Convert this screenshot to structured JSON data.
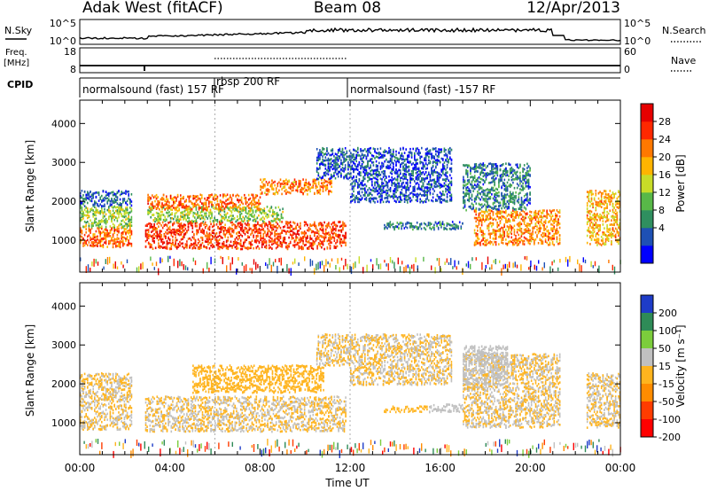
{
  "header": {
    "title": "Adak West (fitACF)",
    "beam": "Beam 08",
    "date": "12/Apr/2013"
  },
  "nsky_panel": {
    "left_label": "N.Sky",
    "right_label": "N.Search",
    "ticks": [
      "10^5",
      "10^0"
    ]
  },
  "freq_panel": {
    "left_label": "Freq.",
    "left_unit": "[MHz]",
    "left_ticks": [
      "18",
      "8"
    ],
    "right_label": "Nave",
    "right_ticks": [
      "60",
      "0"
    ]
  },
  "cpid_panel": {
    "label": "CPID",
    "segments": [
      {
        "name": "normalsound (fast) 157 RF",
        "start": 0.0,
        "end": 6.0
      },
      {
        "name": "rbsp 200 RF",
        "start": 6.0,
        "end": 12.0
      },
      {
        "name": "normalsound (fast) -157 RF",
        "start": 12.0,
        "end": 24.0
      }
    ]
  },
  "power_colorbar": {
    "label": "Power [dB]",
    "ticks": [
      "28",
      "24",
      "20",
      "16",
      "12",
      "8",
      "4"
    ],
    "colors": [
      "#0000ff",
      "#1e50b4",
      "#2f8f5f",
      "#58b848",
      "#c8dc28",
      "#ffb400",
      "#ff7800",
      "#ff2800",
      "#e60000"
    ]
  },
  "velocity_colorbar": {
    "label": "Velocity [m s⁻¹]",
    "ticks": [
      "200",
      "100",
      "50",
      "15",
      "-15",
      "-50",
      "-100",
      "-200"
    ],
    "colors": [
      "#1e3cc8",
      "#2e8b57",
      "#7ccd3c",
      "#c0c0c0",
      "#ffb41e",
      "#ff8c00",
      "#ff3c00",
      "#ff0000"
    ]
  },
  "time_axis": {
    "xlabel": "Time UT",
    "ticks": [
      "00:00",
      "04:00",
      "08:00",
      "12:00",
      "16:00",
      "20:00",
      "00:00"
    ]
  },
  "chart_data": [
    {
      "type": "heatmap",
      "title": "Power",
      "xlabel": "Time UT",
      "ylabel": "Slant Range [km]",
      "xlim": [
        0,
        24
      ],
      "ylim": [
        180,
        4600
      ],
      "yticks": [
        "1000",
        "2000",
        "3000",
        "4000"
      ],
      "colorbar": "Power [dB]",
      "bands": [
        {
          "x": [
            0.0,
            2.3
          ],
          "y": [
            850,
            1350
          ],
          "v": 24
        },
        {
          "x": [
            0.0,
            2.3
          ],
          "y": [
            1350,
            1900
          ],
          "v": 14
        },
        {
          "x": [
            0.0,
            2.3
          ],
          "y": [
            1900,
            2300
          ],
          "v": 6
        },
        {
          "x": [
            2.9,
            11.8
          ],
          "y": [
            800,
            1500
          ],
          "v": 26
        },
        {
          "x": [
            3.0,
            9.0
          ],
          "y": [
            1500,
            1900
          ],
          "v": 14
        },
        {
          "x": [
            3.0,
            8.0
          ],
          "y": [
            1800,
            2200
          ],
          "v": 24
        },
        {
          "x": [
            8.0,
            11.2
          ],
          "y": [
            2200,
            2600
          ],
          "v": 22
        },
        {
          "x": [
            10.5,
            12.0
          ],
          "y": [
            2600,
            3400
          ],
          "v": 6
        },
        {
          "x": [
            12.0,
            16.5
          ],
          "y": [
            2000,
            3400
          ],
          "v": 5
        },
        {
          "x": [
            13.5,
            17.0
          ],
          "y": [
            1300,
            1500
          ],
          "v": 8
        },
        {
          "x": [
            17.5,
            21.3
          ],
          "y": [
            900,
            1800
          ],
          "v": 22
        },
        {
          "x": [
            17.0,
            20.0
          ],
          "y": [
            1800,
            3000
          ],
          "v": 8
        },
        {
          "x": [
            22.5,
            24.0
          ],
          "y": [
            900,
            2300
          ],
          "v": 20
        }
      ]
    },
    {
      "type": "heatmap",
      "title": "Velocity",
      "xlabel": "Time UT",
      "ylabel": "Slant Range [km]",
      "xlim": [
        0,
        24
      ],
      "ylim": [
        180,
        4600
      ],
      "yticks": [
        "1000",
        "2000",
        "3000",
        "4000"
      ],
      "colorbar": "Velocity [m s⁻¹]",
      "bands": [
        {
          "x": [
            0.0,
            2.3
          ],
          "y": [
            850,
            2300
          ],
          "v": 0
        },
        {
          "x": [
            2.9,
            11.8
          ],
          "y": [
            800,
            1700
          ],
          "v": 0
        },
        {
          "x": [
            5.0,
            10.8
          ],
          "y": [
            1800,
            2500
          ],
          "v": -40
        },
        {
          "x": [
            10.5,
            12.0
          ],
          "y": [
            2500,
            3300
          ],
          "v": 0
        },
        {
          "x": [
            12.0,
            16.5
          ],
          "y": [
            2000,
            3300
          ],
          "v": 0
        },
        {
          "x": [
            13.5,
            15.5
          ],
          "y": [
            1300,
            1450
          ],
          "v": -40
        },
        {
          "x": [
            15.5,
            17.0
          ],
          "y": [
            1300,
            1500
          ],
          "v": 40
        },
        {
          "x": [
            17.0,
            21.3
          ],
          "y": [
            900,
            2800
          ],
          "v": 0
        },
        {
          "x": [
            17.0,
            19.0
          ],
          "y": [
            2000,
            3000
          ],
          "v": 40
        },
        {
          "x": [
            22.5,
            24.0
          ],
          "y": [
            900,
            2300
          ],
          "v": 0
        }
      ]
    }
  ]
}
